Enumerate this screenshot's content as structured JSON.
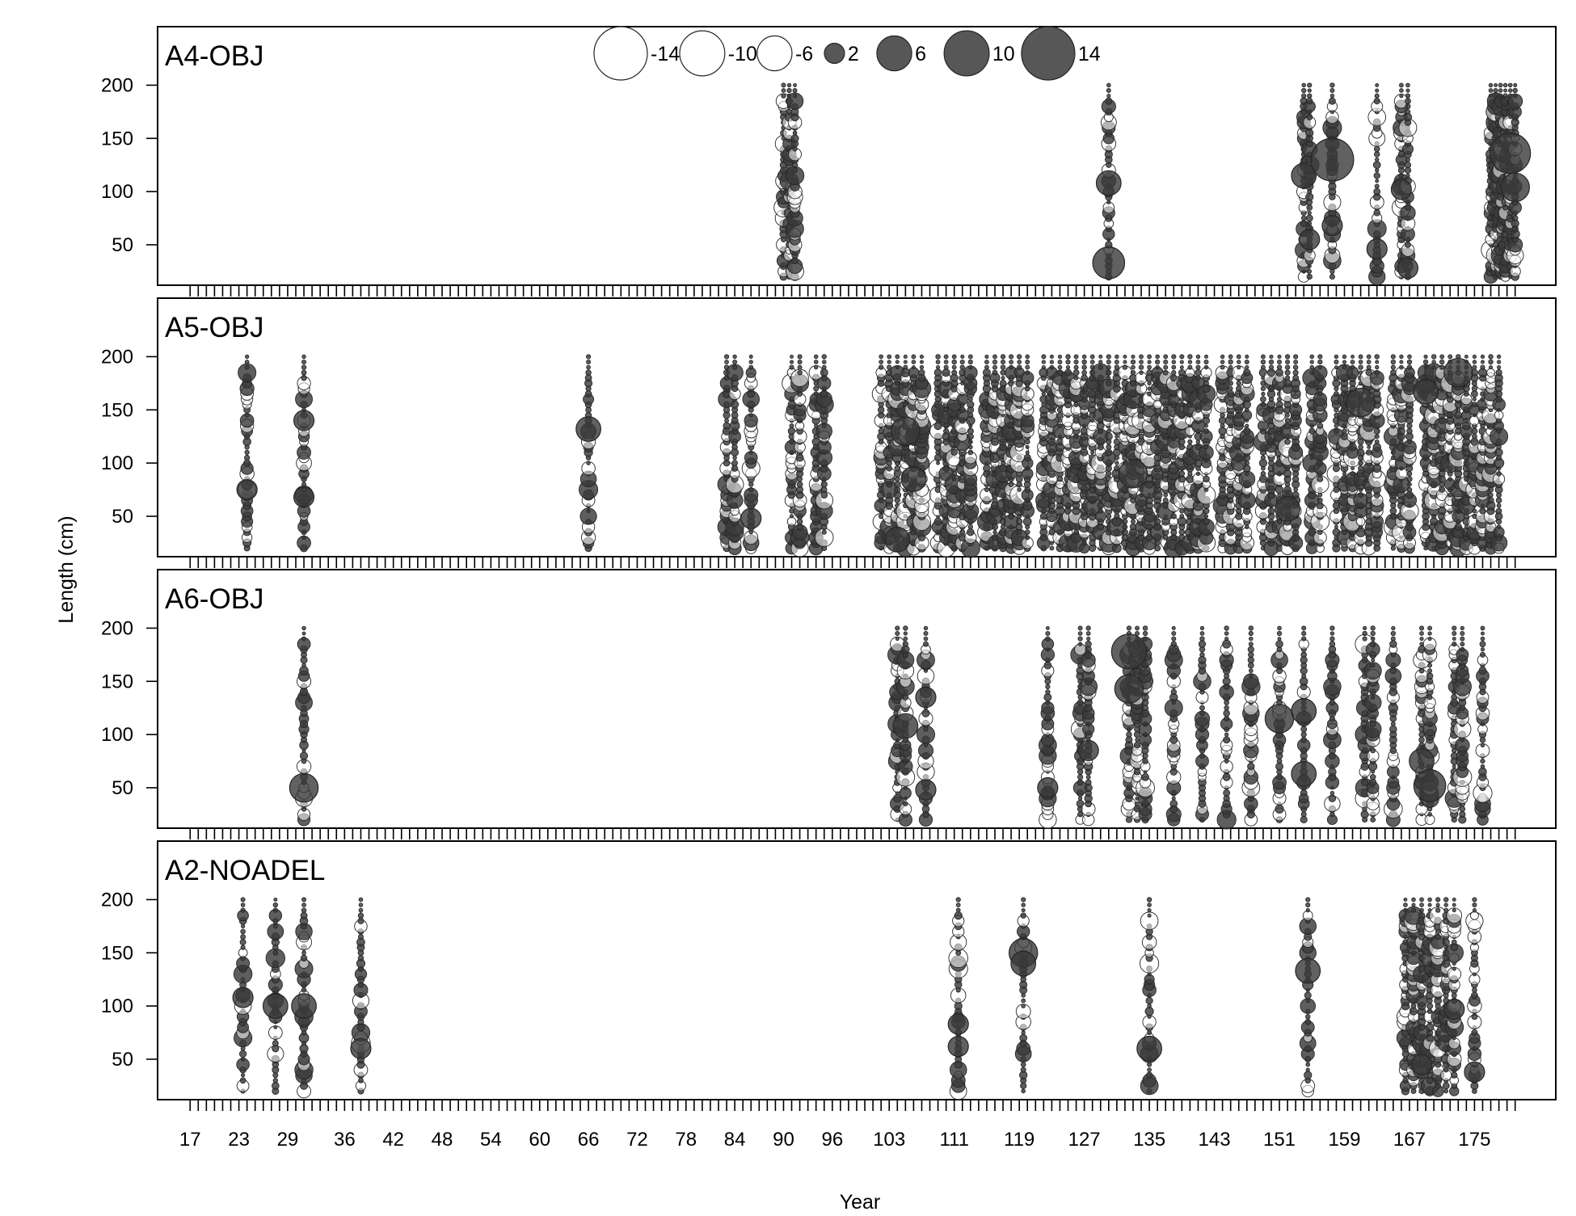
{
  "chart_data": {
    "type": "scatter",
    "subtype": "bubble",
    "xlabel": "Year",
    "ylabel": "Length (cm)",
    "x_range": [
      13,
      185
    ],
    "x_tick_labels": [
      "17",
      "23",
      "29",
      "36",
      "42",
      "48",
      "54",
      "60",
      "66",
      "72",
      "78",
      "84",
      "90",
      "96",
      "103",
      "111",
      "119",
      "127",
      "135",
      "143",
      "151",
      "159",
      "167",
      "175"
    ],
    "y_range": [
      12,
      255
    ],
    "y_ticks": [
      50,
      100,
      150,
      200
    ],
    "length_bins": [
      20,
      25,
      30,
      35,
      40,
      45,
      50,
      55,
      60,
      65,
      70,
      75,
      80,
      85,
      90,
      95,
      100,
      105,
      110,
      115,
      120,
      125,
      130,
      135,
      140,
      145,
      150,
      155,
      160,
      165,
      170,
      175,
      180,
      185,
      190,
      195,
      200
    ],
    "legend": {
      "placement": "top-center",
      "values": [
        -14,
        -10,
        -6,
        2,
        6,
        10,
        14
      ],
      "labels": [
        "-14",
        "-10",
        "-6",
        "2",
        "6",
        "10",
        "14"
      ]
    },
    "colors": {
      "negative": "#ffffff",
      "positive": "#3a3a3a",
      "outline": "#262626"
    },
    "panels": [
      {
        "name": "A4-OBJ",
        "years": [
          90,
          90.7,
          91.4,
          130,
          154,
          154.7,
          157.5,
          163,
          166,
          166.8,
          177,
          177.6,
          178.2,
          178.8,
          179.4,
          180
        ],
        "highlights": [
          {
            "year": 130,
            "length": 108,
            "value": 3
          },
          {
            "year": 130,
            "length": 33,
            "value": 5
          },
          {
            "year": 154,
            "length": 115,
            "value": 3
          },
          {
            "year": 154.7,
            "length": 55,
            "value": 2
          },
          {
            "year": 157.5,
            "length": 130,
            "value": 9
          },
          {
            "year": 157.5,
            "length": 68,
            "value": 2
          },
          {
            "year": 163,
            "length": 46,
            "value": 2
          },
          {
            "year": 166,
            "length": 102,
            "value": 2
          },
          {
            "year": 166.8,
            "length": 28,
            "value": 2
          },
          {
            "year": 179.4,
            "length": 136,
            "value": 8
          },
          {
            "year": 180,
            "length": 104,
            "value": 4
          }
        ]
      },
      {
        "name": "A5-OBJ",
        "years": [
          24,
          31,
          66,
          83,
          84,
          86,
          91,
          92,
          94,
          95,
          102,
          103,
          104,
          105,
          106,
          107,
          109,
          110,
          111,
          112,
          113,
          115,
          116,
          117,
          118,
          119,
          120,
          122,
          123,
          124,
          125,
          126,
          127,
          128,
          129,
          130,
          131,
          132,
          133,
          134,
          135,
          136,
          137,
          138,
          139,
          140,
          141,
          142,
          144,
          145,
          146,
          147,
          149,
          150,
          151,
          152,
          153,
          155,
          156,
          158,
          159,
          160,
          161,
          162,
          163,
          165,
          166,
          167,
          169,
          170,
          171,
          172,
          173,
          174,
          175,
          176,
          177,
          178
        ],
        "highlights": [
          {
            "year": 24,
            "length": 75,
            "value": 2
          },
          {
            "year": 31,
            "length": 140,
            "value": 2
          },
          {
            "year": 31,
            "length": 68,
            "value": 2
          },
          {
            "year": 66,
            "length": 132,
            "value": 3
          },
          {
            "year": 86,
            "length": 48,
            "value": 2
          },
          {
            "year": 104,
            "length": 28,
            "value": 3
          },
          {
            "year": 105,
            "length": 130,
            "value": 4
          },
          {
            "year": 106,
            "length": 85,
            "value": 3
          },
          {
            "year": 133,
            "length": 90,
            "value": 4
          },
          {
            "year": 152,
            "length": 57,
            "value": 3
          },
          {
            "year": 161,
            "length": 157,
            "value": 4
          },
          {
            "year": 169,
            "length": 167,
            "value": 3
          },
          {
            "year": 173,
            "length": 185,
            "value": 4
          }
        ]
      },
      {
        "name": "A6-OBJ",
        "years": [
          31,
          104,
          105,
          107.5,
          122.5,
          126.5,
          127.5,
          132.5,
          133.5,
          134.5,
          138,
          141.5,
          144.5,
          147.5,
          151,
          154,
          157.5,
          161.5,
          162.5,
          165,
          168.5,
          169.5,
          172.5,
          173.5,
          176
        ],
        "highlights": [
          {
            "year": 31,
            "length": 50,
            "value": 4
          },
          {
            "year": 105,
            "length": 108,
            "value": 3
          },
          {
            "year": 107.5,
            "length": 135,
            "value": 2
          },
          {
            "year": 107.5,
            "length": 48,
            "value": 2
          },
          {
            "year": 122.5,
            "length": 50,
            "value": 2
          },
          {
            "year": 127.5,
            "length": 85,
            "value": 2
          },
          {
            "year": 132.5,
            "length": 178,
            "value": 6
          },
          {
            "year": 132.5,
            "length": 143,
            "value": 4
          },
          {
            "year": 151,
            "length": 115,
            "value": 4
          },
          {
            "year": 154,
            "length": 122,
            "value": 3
          },
          {
            "year": 154,
            "length": 63,
            "value": 3
          },
          {
            "year": 168.5,
            "length": 75,
            "value": 3
          },
          {
            "year": 169.5,
            "length": 52,
            "value": 5
          }
        ]
      },
      {
        "name": "A2-NOADEL",
        "years": [
          23.5,
          27.5,
          31,
          38,
          111.5,
          119.5,
          135,
          154.5,
          166.5,
          167.5,
          168.5,
          169.5,
          170.5,
          171.5,
          172.5,
          175
        ],
        "highlights": [
          {
            "year": 23.5,
            "length": 108,
            "value": 2
          },
          {
            "year": 27.5,
            "length": 100,
            "value": 3
          },
          {
            "year": 31,
            "length": 100,
            "value": 3
          },
          {
            "year": 38,
            "length": 60,
            "value": 2
          },
          {
            "year": 111.5,
            "length": 83,
            "value": 2
          },
          {
            "year": 111.5,
            "length": 62,
            "value": 2
          },
          {
            "year": 119.5,
            "length": 150,
            "value": 4
          },
          {
            "year": 119.5,
            "length": 140,
            "value": 3
          },
          {
            "year": 135,
            "length": 60,
            "value": 3
          },
          {
            "year": 154.5,
            "length": 133,
            "value": 3
          },
          {
            "year": 168.5,
            "length": 45,
            "value": 2
          },
          {
            "year": 172.5,
            "length": 97,
            "value": 2
          },
          {
            "year": 175,
            "length": 38,
            "value": 2
          }
        ]
      }
    ]
  }
}
